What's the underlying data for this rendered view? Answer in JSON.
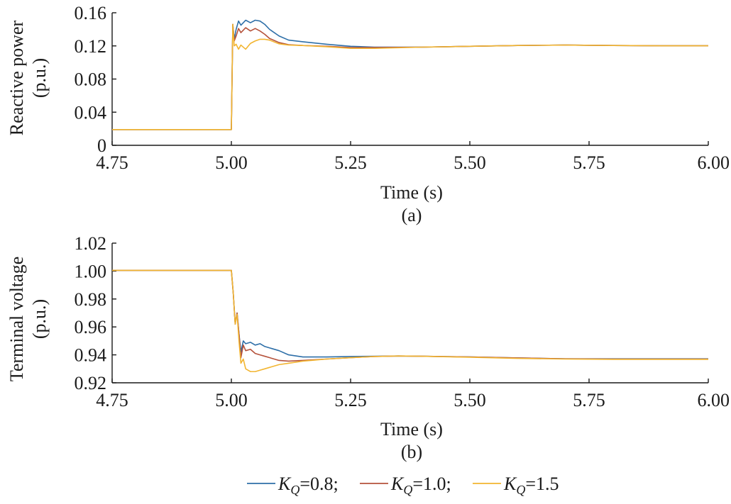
{
  "colors": {
    "kq08": "#2E6FA8",
    "kq10": "#B5523B",
    "kq15": "#F2B531"
  },
  "legend": [
    {
      "prefix": "K",
      "sub": "Q",
      "suffix": "=0.8;",
      "color_key": "kq08"
    },
    {
      "prefix": "K",
      "sub": "Q",
      "suffix": "=1.0;",
      "color_key": "kq10"
    },
    {
      "prefix": "K",
      "sub": "Q",
      "suffix": "=1.5",
      "color_key": "kq15"
    }
  ],
  "chart_data": [
    {
      "type": "line",
      "panel_label": "(a)",
      "xlabel": "Time (s)",
      "ylabel_line1": "Reactive power",
      "ylabel_line2": "(p.u.)",
      "xlim": [
        4.75,
        6.0
      ],
      "ylim": [
        0,
        0.16
      ],
      "xticks": [
        4.75,
        5.0,
        5.25,
        5.5,
        5.75,
        6.0
      ],
      "xtick_labels": [
        "4.75",
        "5.00",
        "5.25",
        "5.50",
        "5.75",
        "6.00"
      ],
      "yticks": [
        0,
        0.04,
        0.08,
        0.12,
        0.16
      ],
      "ytick_labels": [
        "0",
        "0.04",
        "0.08",
        "0.12",
        "0.16"
      ],
      "series": [
        {
          "color_key": "kq08",
          "x": [
            4.75,
            5.0,
            5.003,
            5.006,
            5.01,
            5.015,
            5.02,
            5.03,
            5.04,
            5.05,
            5.06,
            5.07,
            5.08,
            5.1,
            5.12,
            5.15,
            5.2,
            5.25,
            5.3,
            5.4,
            5.5,
            5.6,
            5.7,
            5.8,
            5.9,
            6.0
          ],
          "y": [
            0.019,
            0.019,
            0.146,
            0.128,
            0.14,
            0.15,
            0.145,
            0.151,
            0.148,
            0.151,
            0.15,
            0.146,
            0.14,
            0.132,
            0.127,
            0.125,
            0.122,
            0.1195,
            0.1185,
            0.1185,
            0.1195,
            0.1205,
            0.121,
            0.1205,
            0.1202,
            0.1202
          ]
        },
        {
          "color_key": "kq10",
          "x": [
            4.75,
            5.0,
            5.003,
            5.006,
            5.01,
            5.015,
            5.02,
            5.03,
            5.04,
            5.05,
            5.06,
            5.07,
            5.08,
            5.1,
            5.12,
            5.15,
            5.2,
            5.25,
            5.3,
            5.4,
            5.5,
            5.6,
            5.7,
            5.8,
            5.9,
            6.0
          ],
          "y": [
            0.019,
            0.019,
            0.146,
            0.126,
            0.132,
            0.141,
            0.136,
            0.142,
            0.138,
            0.141,
            0.138,
            0.134,
            0.129,
            0.124,
            0.1215,
            0.1205,
            0.1195,
            0.118,
            0.118,
            0.1185,
            0.1195,
            0.1205,
            0.121,
            0.1205,
            0.1202,
            0.1202
          ]
        },
        {
          "color_key": "kq15",
          "x": [
            4.75,
            5.0,
            5.003,
            5.006,
            5.01,
            5.015,
            5.02,
            5.03,
            5.04,
            5.05,
            5.06,
            5.07,
            5.08,
            5.1,
            5.12,
            5.15,
            5.2,
            5.25,
            5.3,
            5.4,
            5.5,
            5.6,
            5.7,
            5.8,
            5.9,
            6.0
          ],
          "y": [
            0.019,
            0.019,
            0.146,
            0.12,
            0.122,
            0.116,
            0.121,
            0.116,
            0.123,
            0.126,
            0.128,
            0.128,
            0.127,
            0.1225,
            0.121,
            0.1205,
            0.119,
            0.117,
            0.117,
            0.1185,
            0.1195,
            0.1205,
            0.121,
            0.1205,
            0.1202,
            0.1202
          ]
        }
      ]
    },
    {
      "type": "line",
      "panel_label": "(b)",
      "xlabel": "Time (s)",
      "ylabel_line1": "Terminal voltage",
      "ylabel_line2": "(p.u.)",
      "xlim": [
        4.75,
        6.0
      ],
      "ylim": [
        0.92,
        1.02
      ],
      "xticks": [
        4.75,
        5.0,
        5.25,
        5.5,
        5.75,
        6.0
      ],
      "xtick_labels": [
        "4.75",
        "5.00",
        "5.25",
        "5.50",
        "5.75",
        "6.00"
      ],
      "yticks": [
        0.92,
        0.94,
        0.96,
        0.98,
        1.0,
        1.02
      ],
      "ytick_labels": [
        "0.92",
        "0.94",
        "0.96",
        "0.98",
        "1.00",
        "1.02"
      ],
      "series": [
        {
          "color_key": "kq08",
          "x": [
            4.75,
            5.0,
            5.004,
            5.008,
            5.012,
            5.016,
            5.02,
            5.025,
            5.03,
            5.04,
            5.05,
            5.06,
            5.07,
            5.08,
            5.1,
            5.12,
            5.15,
            5.2,
            5.25,
            5.3,
            5.35,
            5.4,
            5.5,
            5.6,
            5.7,
            5.8,
            5.9,
            6.0
          ],
          "y": [
            1.0005,
            1.0005,
            0.984,
            0.962,
            0.97,
            0.955,
            0.942,
            0.95,
            0.948,
            0.949,
            0.947,
            0.948,
            0.946,
            0.945,
            0.943,
            0.94,
            0.9385,
            0.9385,
            0.9388,
            0.939,
            0.9392,
            0.939,
            0.9385,
            0.9378,
            0.9372,
            0.9372,
            0.9372,
            0.9372
          ]
        },
        {
          "color_key": "kq10",
          "x": [
            4.75,
            5.0,
            5.004,
            5.008,
            5.012,
            5.016,
            5.02,
            5.025,
            5.03,
            5.04,
            5.05,
            5.06,
            5.07,
            5.08,
            5.1,
            5.12,
            5.15,
            5.2,
            5.25,
            5.3,
            5.35,
            5.4,
            5.5,
            5.6,
            5.7,
            5.8,
            5.9,
            6.0
          ],
          "y": [
            1.0005,
            1.0005,
            0.984,
            0.962,
            0.97,
            0.955,
            0.938,
            0.947,
            0.943,
            0.944,
            0.941,
            0.94,
            0.939,
            0.938,
            0.936,
            0.9355,
            0.936,
            0.937,
            0.938,
            0.9388,
            0.9392,
            0.939,
            0.9385,
            0.9378,
            0.9372,
            0.937,
            0.937,
            0.937
          ]
        },
        {
          "color_key": "kq15",
          "x": [
            4.75,
            5.0,
            5.004,
            5.008,
            5.012,
            5.016,
            5.02,
            5.025,
            5.03,
            5.04,
            5.05,
            5.06,
            5.07,
            5.08,
            5.1,
            5.12,
            5.15,
            5.2,
            5.25,
            5.3,
            5.35,
            5.4,
            5.5,
            5.6,
            5.7,
            5.8,
            5.9,
            6.0
          ],
          "y": [
            1.0005,
            1.0005,
            0.984,
            0.962,
            0.969,
            0.95,
            0.934,
            0.937,
            0.93,
            0.928,
            0.928,
            0.929,
            0.93,
            0.931,
            0.933,
            0.934,
            0.9355,
            0.937,
            0.938,
            0.9388,
            0.9392,
            0.939,
            0.9383,
            0.9375,
            0.937,
            0.9368,
            0.9368,
            0.9368
          ]
        }
      ]
    }
  ]
}
